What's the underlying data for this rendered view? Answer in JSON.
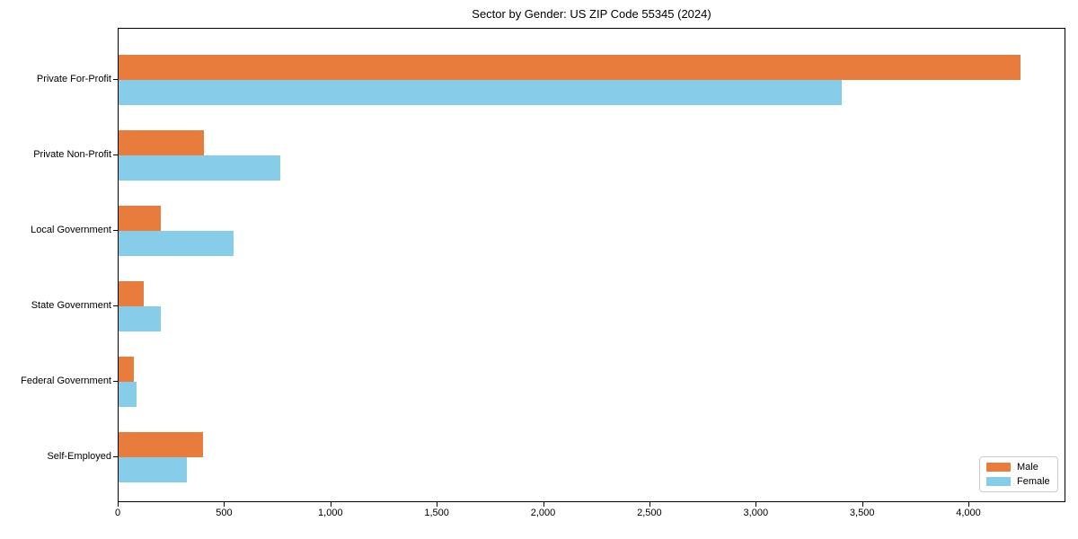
{
  "chart_data": {
    "type": "bar",
    "orientation": "horizontal",
    "title": "Sector by Gender: US ZIP Code 55345 (2024)",
    "categories": [
      "Private For-Profit",
      "Private Non-Profit",
      "Local Government",
      "State Government",
      "Federal Government",
      "Self-Employed"
    ],
    "series": [
      {
        "name": "Male",
        "color": "#e87c3c",
        "values": [
          4240,
          400,
          200,
          120,
          70,
          395
        ]
      },
      {
        "name": "Female",
        "color": "#87cde9",
        "values": [
          3400,
          760,
          540,
          200,
          85,
          320
        ]
      }
    ],
    "xlabel": "",
    "ylabel": "",
    "xlim": [
      0,
      4456
    ],
    "xticks": [
      0,
      500,
      1000,
      1500,
      2000,
      2500,
      3000,
      3500,
      4000
    ],
    "xtick_labels": [
      "0",
      "500",
      "1,000",
      "1,500",
      "2,000",
      "2,500",
      "3,000",
      "3,500",
      "4,000"
    ],
    "grid": false,
    "legend": {
      "position": "lower right"
    }
  }
}
